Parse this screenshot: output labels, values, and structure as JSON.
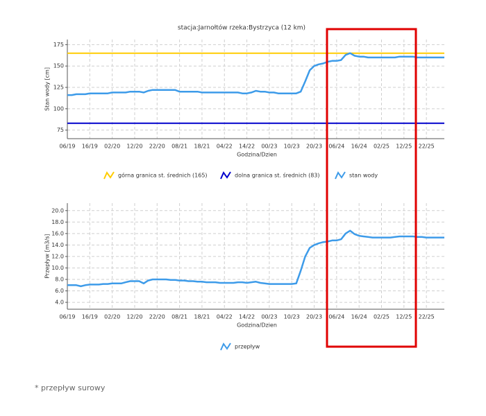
{
  "chart_data": [
    {
      "type": "line",
      "title": "stacja:Jarnołtów   rzeka:Bystrzyca (12 km)",
      "ylabel": "Stan wody [cm]",
      "xlabel": "Godzina/Dzien",
      "categories": [
        "06/19",
        null,
        null,
        null,
        null,
        "16/19",
        null,
        null,
        null,
        null,
        "02/20",
        null,
        null,
        null,
        null,
        "12/20",
        null,
        null,
        null,
        null,
        "22/20",
        null,
        null,
        null,
        null,
        "08/21",
        null,
        null,
        null,
        null,
        "18/21",
        null,
        null,
        null,
        null,
        "04/22",
        null,
        null,
        null,
        null,
        "14/22",
        null,
        null,
        null,
        null,
        "00/23",
        null,
        null,
        null,
        null,
        "10/23",
        null,
        null,
        null,
        null,
        "20/23",
        null,
        null,
        null,
        null,
        "06/24",
        null,
        null,
        null,
        null,
        "16/24",
        null,
        null,
        null,
        null,
        "02/25",
        null,
        null,
        null,
        null,
        "12/25",
        null,
        null,
        null,
        null,
        "22/25",
        null,
        null,
        null,
        null
      ],
      "series": [
        {
          "name": "stan wody",
          "color": "#3d9be9",
          "values": [
            116,
            116,
            117,
            117,
            117,
            118,
            118,
            118,
            118,
            118,
            119,
            119,
            119,
            119,
            120,
            120,
            120,
            119,
            121,
            122,
            122,
            122,
            122,
            122,
            122,
            120,
            120,
            120,
            120,
            120,
            119,
            119,
            119,
            119,
            119,
            119,
            119,
            119,
            119,
            118,
            118,
            119,
            121,
            120,
            120,
            119,
            119,
            118,
            118,
            118,
            118,
            118,
            120,
            132,
            145,
            150,
            152,
            153,
            155,
            156,
            156,
            157,
            163,
            165,
            162,
            161,
            161,
            160,
            160,
            160,
            160,
            160,
            160,
            160,
            161,
            161,
            161,
            161,
            160,
            160,
            160,
            160,
            160,
            160,
            160
          ]
        }
      ],
      "thresholds": [
        {
          "name": "górna granica st. średnich (165)",
          "value": 165,
          "color": "#ffcc00"
        },
        {
          "name": "dolna granica st. średnich (83)",
          "value": 83,
          "color": "#0000cc"
        }
      ],
      "ylim": [
        65,
        181
      ],
      "yticks": [
        75,
        100,
        125,
        150,
        175
      ],
      "grid": true
    },
    {
      "type": "line",
      "ylabel": "Przepływ [m3/s]",
      "xlabel": "Godzina/Dzien",
      "categories": [
        "06/19",
        null,
        null,
        null,
        null,
        "16/19",
        null,
        null,
        null,
        null,
        "02/20",
        null,
        null,
        null,
        null,
        "12/20",
        null,
        null,
        null,
        null,
        "22/20",
        null,
        null,
        null,
        null,
        "08/21",
        null,
        null,
        null,
        null,
        "18/21",
        null,
        null,
        null,
        null,
        "04/22",
        null,
        null,
        null,
        null,
        "14/22",
        null,
        null,
        null,
        null,
        "00/23",
        null,
        null,
        null,
        null,
        "10/23",
        null,
        null,
        null,
        null,
        "20/23",
        null,
        null,
        null,
        null,
        "06/24",
        null,
        null,
        null,
        null,
        "16/24",
        null,
        null,
        null,
        null,
        "02/25",
        null,
        null,
        null,
        null,
        "12/25",
        null,
        null,
        null,
        null,
        "22/25",
        null,
        null,
        null,
        null
      ],
      "series": [
        {
          "name": "przepływ",
          "color": "#3d9be9",
          "values": [
            7.0,
            7.0,
            7.0,
            6.8,
            7.0,
            7.1,
            7.1,
            7.1,
            7.2,
            7.2,
            7.3,
            7.3,
            7.3,
            7.5,
            7.7,
            7.7,
            7.7,
            7.3,
            7.8,
            8.0,
            8.0,
            8.0,
            8.0,
            7.9,
            7.9,
            7.8,
            7.8,
            7.7,
            7.7,
            7.6,
            7.6,
            7.5,
            7.5,
            7.5,
            7.4,
            7.4,
            7.4,
            7.4,
            7.5,
            7.5,
            7.4,
            7.5,
            7.6,
            7.4,
            7.3,
            7.2,
            7.2,
            7.2,
            7.2,
            7.2,
            7.2,
            7.3,
            9.5,
            12.0,
            13.5,
            14.0,
            14.3,
            14.5,
            14.6,
            14.8,
            14.8,
            15.0,
            16.0,
            16.5,
            15.9,
            15.6,
            15.5,
            15.4,
            15.3,
            15.3,
            15.3,
            15.3,
            15.3,
            15.4,
            15.5,
            15.5,
            15.5,
            15.5,
            15.4,
            15.4,
            15.3,
            15.3,
            15.3,
            15.3,
            15.3
          ]
        }
      ],
      "ylim": [
        2.8,
        21.3
      ],
      "yticks": [
        {
          "value": 4,
          "label": "4.0"
        },
        {
          "value": 6,
          "label": "6.0"
        },
        {
          "value": 8,
          "label": "8.0"
        },
        {
          "value": 10,
          "label": "10.0"
        },
        {
          "value": 12,
          "label": "12.0"
        },
        {
          "value": 14,
          "label": "14.0"
        },
        {
          "value": 16,
          "label": "16.0"
        },
        {
          "value": 18,
          "label": "18.0"
        },
        {
          "value": 20,
          "label": "20.0"
        }
      ],
      "grid": true
    }
  ],
  "footnote": "* przepływ surowy"
}
